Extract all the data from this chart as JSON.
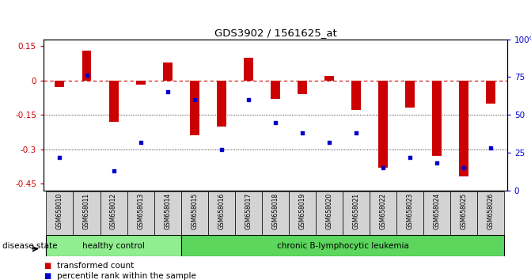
{
  "title": "GDS3902 / 1561625_at",
  "samples": [
    "GSM658010",
    "GSM658011",
    "GSM658012",
    "GSM658013",
    "GSM658014",
    "GSM658015",
    "GSM658016",
    "GSM658017",
    "GSM658018",
    "GSM658019",
    "GSM658020",
    "GSM658021",
    "GSM658022",
    "GSM658023",
    "GSM658024",
    "GSM658025",
    "GSM658026"
  ],
  "bar_values": [
    -0.03,
    0.13,
    -0.18,
    -0.02,
    0.08,
    -0.24,
    -0.2,
    0.1,
    -0.08,
    -0.06,
    0.02,
    -0.13,
    -0.38,
    -0.12,
    -0.33,
    -0.42,
    -0.1
  ],
  "dot_values": [
    22,
    76,
    13,
    32,
    65,
    60,
    27,
    60,
    45,
    38,
    32,
    38,
    15,
    22,
    18,
    15,
    28
  ],
  "ylim_left": [
    -0.48,
    0.18
  ],
  "ylim_right": [
    0,
    100
  ],
  "yticks_left": [
    0.15,
    0.0,
    -0.15,
    -0.3,
    -0.45
  ],
  "yticks_right": [
    100,
    75,
    50,
    25,
    0
  ],
  "bar_color": "#CC0000",
  "dot_color": "#0000CC",
  "zero_line_color": "#CC0000",
  "grid_color": "#000000",
  "healthy_label": "healthy control",
  "leukemia_label": "chronic B-lymphocytic leukemia",
  "healthy_count": 5,
  "leukemia_count": 12,
  "disease_state_label": "disease state",
  "legend_bar_label": "transformed count",
  "legend_dot_label": "percentile rank within the sample",
  "healthy_color": "#90EE90",
  "leukemia_color": "#5CD65C",
  "xtick_bg": "#D3D3D3",
  "bar_width": 0.35
}
